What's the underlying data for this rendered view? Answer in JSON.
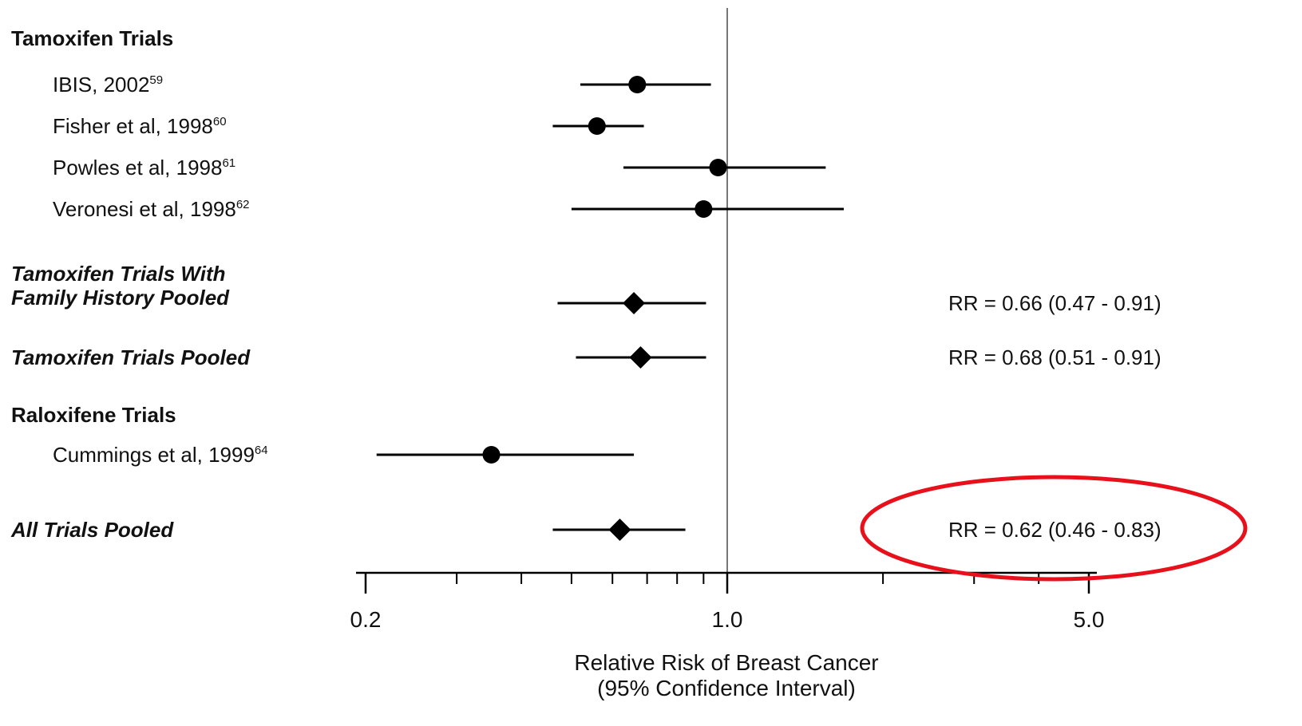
{
  "chart_data": {
    "type": "forest",
    "xscale": "log",
    "xlim": [
      0.2,
      5.0
    ],
    "ticks": [
      "0.2",
      "1.0",
      "5.0"
    ],
    "tick_values": [
      0.2,
      1.0,
      5.0
    ],
    "minor_ticks": [
      0.3,
      0.4,
      0.5,
      0.6,
      0.7,
      0.8,
      0.9,
      2,
      3,
      4
    ],
    "reference_line": 1.0,
    "xlabel": "Relative Risk of Breast Cancer",
    "xlabel_line2": "(95% Confidence Interval)",
    "rows": [
      {
        "label": "Tamoxifen Trials",
        "style": "header"
      },
      {
        "label": "IBIS, 2002",
        "sup": "59",
        "style": "study",
        "marker": "circle",
        "estimate": 0.67,
        "lower": 0.52,
        "upper": 0.93
      },
      {
        "label": "Fisher et al, 1998",
        "sup": "60",
        "style": "study",
        "marker": "circle",
        "estimate": 0.56,
        "lower": 0.46,
        "upper": 0.69
      },
      {
        "label": "Powles et al, 1998",
        "sup": "61",
        "style": "study",
        "marker": "circle",
        "estimate": 0.96,
        "lower": 0.63,
        "upper": 1.55
      },
      {
        "label": "Veronesi et al, 1998",
        "sup": "62",
        "style": "study",
        "marker": "circle",
        "estimate": 0.9,
        "lower": 0.5,
        "upper": 1.68
      },
      {
        "label": "Tamoxifen Trials With",
        "label2": "Family History Pooled",
        "style": "pooled",
        "marker": "diamond",
        "estimate": 0.66,
        "lower": 0.47,
        "upper": 0.91,
        "rr_text": "RR = 0.66 (0.47 - 0.91)"
      },
      {
        "label": "Tamoxifen Trials Pooled",
        "style": "pooled",
        "marker": "diamond",
        "estimate": 0.68,
        "lower": 0.51,
        "upper": 0.91,
        "rr_text": "RR = 0.68 (0.51 - 0.91)"
      },
      {
        "label": "Raloxifene Trials",
        "style": "header"
      },
      {
        "label": "Cummings et al, 1999",
        "sup": "64",
        "style": "study",
        "marker": "circle",
        "estimate": 0.35,
        "lower": 0.21,
        "upper": 0.66
      },
      {
        "label": "All Trials Pooled",
        "style": "pooled",
        "marker": "diamond",
        "estimate": 0.62,
        "lower": 0.46,
        "upper": 0.83,
        "rr_text": "RR = 0.62 (0.46 - 0.83)",
        "highlighted": true
      }
    ]
  },
  "colors": {
    "marker": "#000000",
    "reference_line": "#777777",
    "highlight": "#e8101a"
  }
}
